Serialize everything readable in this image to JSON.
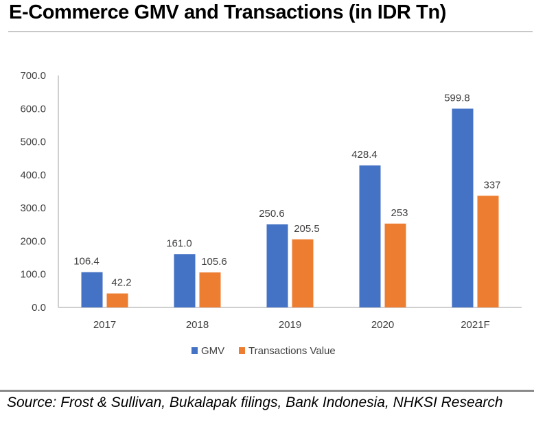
{
  "header": {
    "title": "E-Commerce GMV and Transactions (in IDR Tn)"
  },
  "footer": {
    "source": "Source: Frost & Sullivan, Bukalapak filings, Bank Indonesia, NHKSI Research"
  },
  "chart_data": {
    "type": "bar",
    "title": "E-Commerce GMV and Transactions (in IDR Tn)",
    "xlabel": "",
    "ylabel": "",
    "categories": [
      "2017",
      "2018",
      "2019",
      "2020",
      "2021F"
    ],
    "series": [
      {
        "name": "GMV",
        "color": "#4472c4",
        "values": [
          106.4,
          161.0,
          250.6,
          428.4,
          599.8
        ],
        "labels": [
          "106.4",
          "161.0",
          "250.6",
          "428.4",
          "599.8"
        ]
      },
      {
        "name": "Transactions Value",
        "color": "#ed7d31",
        "values": [
          42.2,
          105.6,
          205.5,
          253,
          337
        ],
        "labels": [
          "42.2",
          "105.6",
          "205.5",
          "253",
          "337"
        ]
      }
    ],
    "ylim": [
      0,
      700
    ],
    "yticks": [
      "0.0",
      "100.0",
      "200.0",
      "300.0",
      "400.0",
      "500.0",
      "600.0",
      "700.0"
    ],
    "grid": false,
    "legend_position": "bottom-center"
  }
}
